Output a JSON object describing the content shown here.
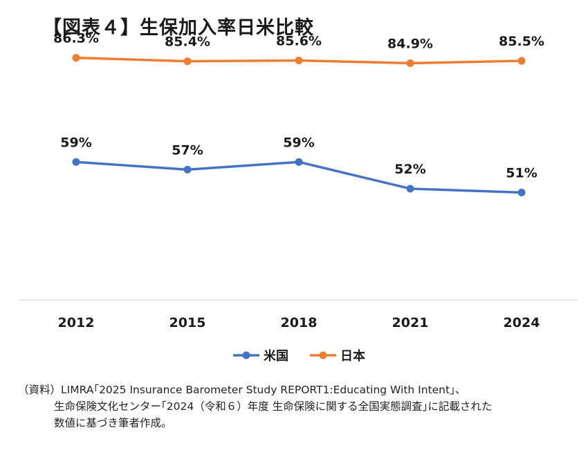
{
  "title": "【図表４】生保加入率日米比較",
  "source": {
    "line1": "（資料）LIMRA｢2025 Insurance Barometer Study REPORT1:Educating With Intent｣、",
    "line2": "生命保険文化センター｢2024（令和６）年度 生命保険に関する全国実態調査｣に記載された",
    "line3": "数値に基づき筆者作成。"
  },
  "chart_data": {
    "type": "line",
    "title": "【図表４】生保加入率日米比較",
    "xlabel": "",
    "ylabel": "",
    "categories": [
      "2012",
      "2015",
      "2018",
      "2021",
      "2024"
    ],
    "ylim": [
      0,
      100
    ],
    "grid": false,
    "legend_position": "bottom",
    "series": [
      {
        "name": "米国",
        "color": "#4472c4",
        "values": [
          59,
          57,
          59,
          52,
          51
        ],
        "labels": [
          "59%",
          "57%",
          "59%",
          "52%",
          "51%"
        ]
      },
      {
        "name": "日本",
        "color": "#ed7d31",
        "values": [
          86.3,
          85.4,
          85.6,
          84.9,
          85.5
        ],
        "labels": [
          "86.3%",
          "85.4%",
          "85.6%",
          "84.9%",
          "85.5%"
        ]
      }
    ]
  }
}
